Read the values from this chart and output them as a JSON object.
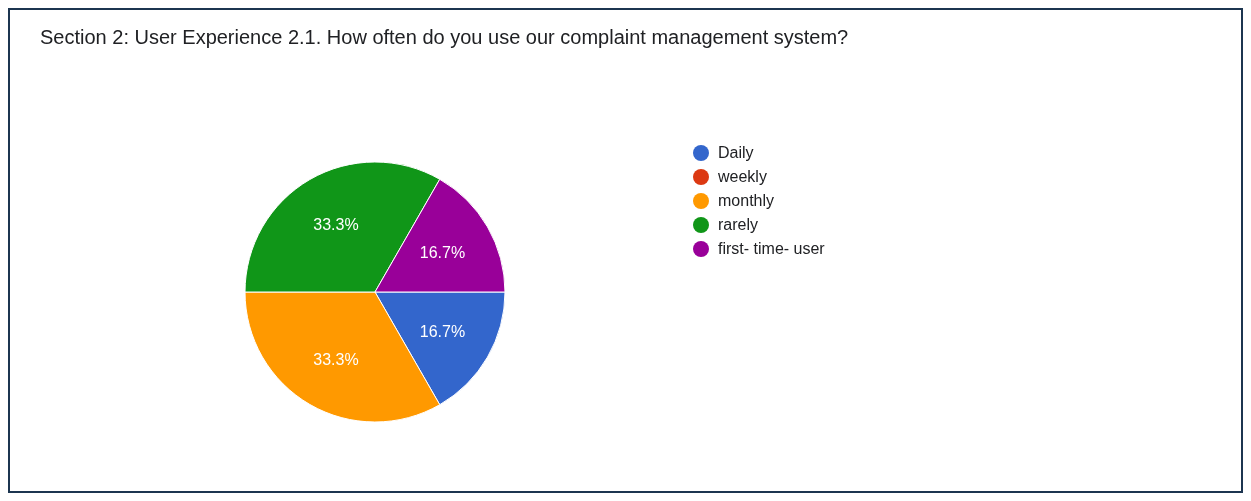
{
  "chart_data": {
    "type": "pie",
    "title": "Section 2: User Experience 2.1. How often do you use our complaint management system?",
    "categories": [
      "Daily",
      "weekly",
      "monthly",
      "rarely",
      "first- time- user"
    ],
    "values": [
      16.7,
      0,
      33.3,
      33.3,
      16.7
    ],
    "colors": [
      "#3366cc",
      "#dc3912",
      "#ff9900",
      "#109618",
      "#990099"
    ],
    "value_labels": [
      "16.7%",
      null,
      "33.3%",
      "33.3%",
      "16.7%"
    ],
    "legend": "right"
  }
}
